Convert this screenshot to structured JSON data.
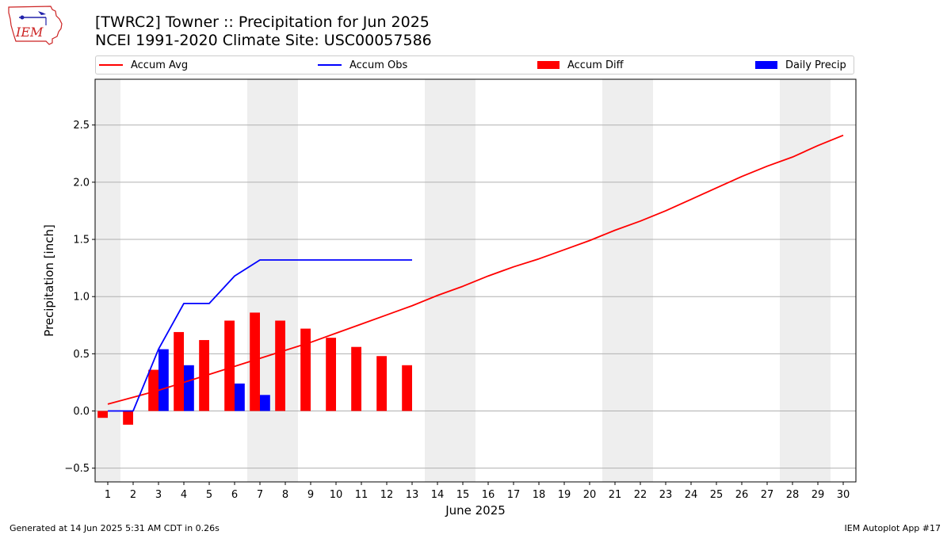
{
  "header": {
    "title_line1": "[TWRC2] Towner :: Precipitation for Jun 2025",
    "title_line2": "NCEI 1991-2020 Climate Site: USC00057586",
    "logo_text": "IEM"
  },
  "footer": {
    "generated": "Generated at 14 Jun 2025 5:31 AM CDT in 0.26s",
    "app": "IEM Autoplot App #17"
  },
  "colors": {
    "avg": "#ff0000",
    "obs": "#0000ff",
    "diff": "#ff0000",
    "daily": "#0000ff",
    "weekend_shade": "#eeeeee",
    "grid": "#b0b0b0"
  },
  "chart_data": {
    "type": "bar",
    "title": "[TWRC2] Towner :: Precipitation for Jun 2025",
    "subtitle": "NCEI 1991-2020 Climate Site: USC00057586",
    "xlabel": "June 2025",
    "ylabel": "Precipitation [inch]",
    "xlim": [
      0.5,
      30.5
    ],
    "ylim": [
      -0.62,
      2.9
    ],
    "yticks": [
      -0.5,
      0.0,
      0.5,
      1.0,
      1.5,
      2.0,
      2.5
    ],
    "ytick_labels": [
      "−0.5",
      "0.0",
      "0.5",
      "1.0",
      "1.5",
      "2.0",
      "2.5"
    ],
    "x": [
      1,
      2,
      3,
      4,
      5,
      6,
      7,
      8,
      9,
      10,
      11,
      12,
      13,
      14,
      15,
      16,
      17,
      18,
      19,
      20,
      21,
      22,
      23,
      24,
      25,
      26,
      27,
      28,
      29,
      30
    ],
    "xtick_labels": [
      "1",
      "2",
      "3",
      "4",
      "5",
      "6",
      "7",
      "8",
      "9",
      "10",
      "11",
      "12",
      "13",
      "14",
      "15",
      "16",
      "17",
      "18",
      "19",
      "20",
      "21",
      "22",
      "23",
      "24",
      "25",
      "26",
      "27",
      "28",
      "29",
      "30"
    ],
    "grid": "y",
    "legend_placement": "top",
    "weekend_shading_days": [
      [
        1,
        1
      ],
      [
        7,
        8
      ],
      [
        14,
        15
      ],
      [
        21,
        22
      ],
      [
        28,
        29
      ]
    ],
    "series": [
      {
        "name": "Accum Avg",
        "kind": "line",
        "x": [
          1,
          2,
          3,
          4,
          5,
          6,
          7,
          8,
          9,
          10,
          11,
          12,
          13,
          14,
          15,
          16,
          17,
          18,
          19,
          20,
          21,
          22,
          23,
          24,
          25,
          26,
          27,
          28,
          29,
          30
        ],
        "values": [
          0.06,
          0.12,
          0.18,
          0.25,
          0.32,
          0.39,
          0.46,
          0.53,
          0.6,
          0.68,
          0.76,
          0.84,
          0.92,
          1.01,
          1.09,
          1.18,
          1.26,
          1.33,
          1.41,
          1.49,
          1.58,
          1.66,
          1.75,
          1.85,
          1.95,
          2.05,
          2.14,
          2.22,
          2.32,
          2.41
        ]
      },
      {
        "name": "Accum Obs",
        "kind": "line",
        "x": [
          1,
          2,
          3,
          4,
          5,
          6,
          7,
          8,
          9,
          10,
          11,
          12,
          13
        ],
        "values": [
          0.0,
          0.0,
          0.54,
          0.94,
          0.94,
          1.18,
          1.32,
          1.32,
          1.32,
          1.32,
          1.32,
          1.32,
          1.32
        ]
      },
      {
        "name": "Accum Diff",
        "kind": "bar",
        "x": [
          1,
          2,
          3,
          4,
          5,
          6,
          7,
          8,
          9,
          10,
          11,
          12,
          13
        ],
        "values": [
          -0.06,
          -0.12,
          0.36,
          0.69,
          0.62,
          0.79,
          0.86,
          0.79,
          0.72,
          0.64,
          0.56,
          0.48,
          0.4
        ]
      },
      {
        "name": "Daily Precip",
        "kind": "bar",
        "x": [
          3,
          4,
          6,
          7
        ],
        "values": [
          0.54,
          0.4,
          0.24,
          0.14
        ]
      }
    ]
  }
}
